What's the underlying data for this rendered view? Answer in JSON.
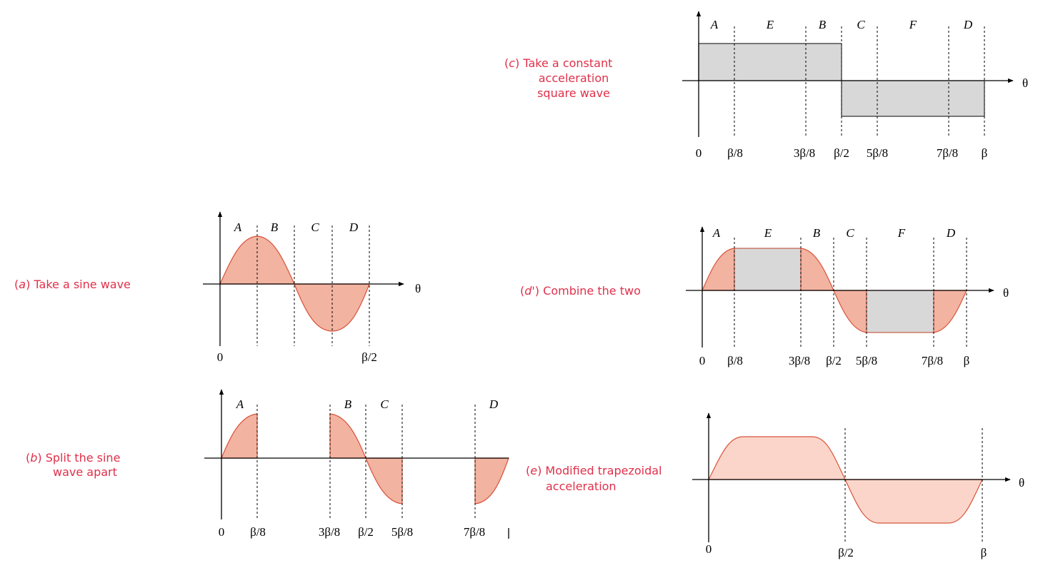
{
  "panels": {
    "a": {
      "caption": {
        "letter": "a",
        "lines": [
          "Take a sine wave"
        ]
      },
      "segment_labels": [
        "A",
        "B",
        "C",
        "D"
      ],
      "ticks": [
        "0",
        "β/2"
      ],
      "axis_label": "θ"
    },
    "b": {
      "caption": {
        "letter": "b",
        "lines": [
          "Split the sine",
          "wave apart"
        ]
      },
      "segment_labels": [
        "A",
        "B",
        "C",
        "D"
      ],
      "ticks": [
        "0",
        "β/8",
        "3β/8",
        "β/2",
        "5β/8",
        "7β/8"
      ]
    },
    "c": {
      "caption": {
        "letter": "c",
        "lines": [
          "Take a constant",
          "acceleration",
          "square wave"
        ]
      },
      "segment_labels": [
        "A",
        "E",
        "B",
        "C",
        "F",
        "D"
      ],
      "ticks": [
        "0",
        "β/8",
        "3β/8",
        "β/2",
        "5β/8",
        "7β/8",
        "β"
      ],
      "axis_label": "θ"
    },
    "d": {
      "caption": {
        "letter": "d",
        "lines": [
          "Combine the two"
        ]
      },
      "segment_labels": [
        "A",
        "E",
        "B",
        "C",
        "F",
        "D"
      ],
      "ticks": [
        "0",
        "β/8",
        "3β/8",
        "β/2",
        "5β/8",
        "7β/8",
        "β"
      ],
      "axis_label": "θ"
    },
    "e": {
      "caption": {
        "letter": "e",
        "lines": [
          "Modified trapezoidal",
          "acceleration"
        ]
      },
      "ticks": [
        "0",
        "β/2",
        "β"
      ],
      "axis_label": "θ"
    }
  },
  "colors": {
    "caption": "#e0304a",
    "sine_fill": "#f2b3a1",
    "trapezoid_fill": "#fbd5ca",
    "square_fill": "#d8d8d8"
  }
}
